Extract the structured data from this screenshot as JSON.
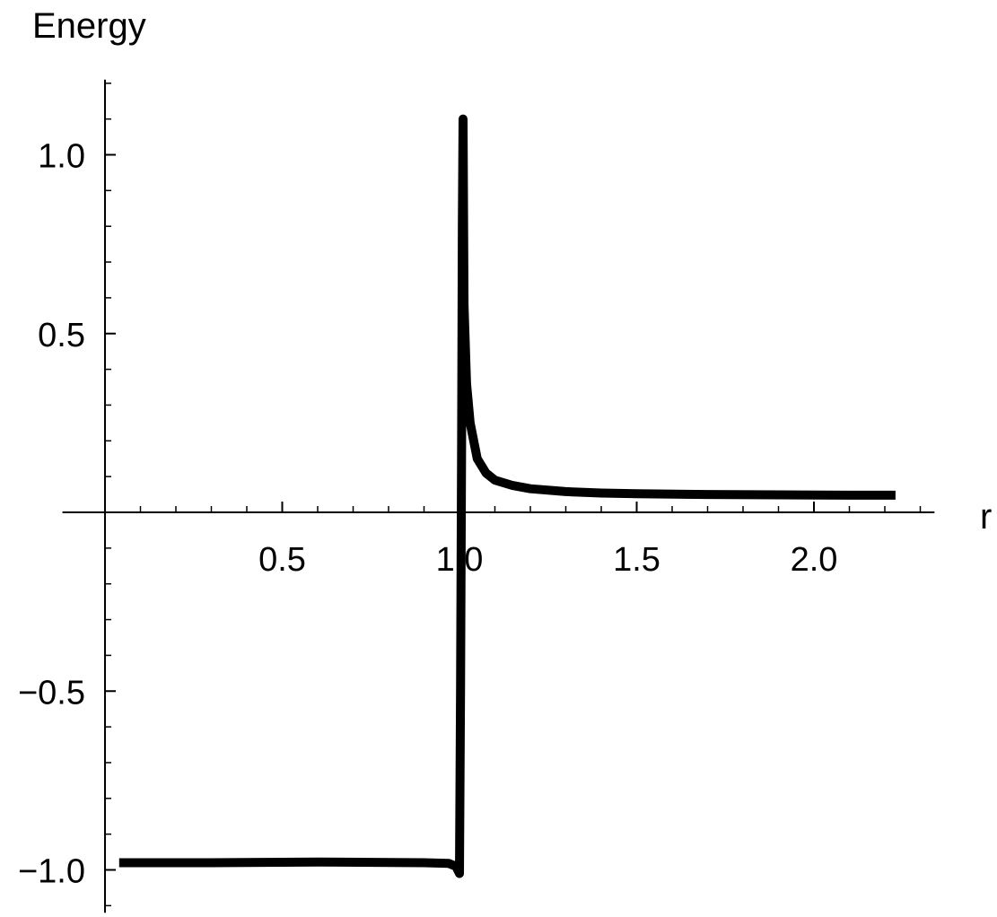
{
  "chart_data": {
    "type": "line",
    "title": "",
    "xlabel": "r",
    "ylabel": "Energy",
    "xlim": [
      -0.12,
      2.34
    ],
    "ylim": [
      -1.12,
      1.21
    ],
    "grid": false,
    "legend": "none",
    "x_ticks": [
      {
        "value": 0.5,
        "label": "0.5"
      },
      {
        "value": 1.0,
        "label": "1.0"
      },
      {
        "value": 1.5,
        "label": "1.5"
      },
      {
        "value": 2.0,
        "label": "2.0"
      }
    ],
    "y_ticks": [
      {
        "value": 1.0,
        "label": "1.0"
      },
      {
        "value": 0.5,
        "label": "0.5"
      },
      {
        "value": -0.5,
        "label": "−0.5"
      },
      {
        "value": -1.0,
        "label": "−1.0"
      }
    ],
    "x_minor_step": 0.1,
    "y_minor_step": 0.1,
    "line_color": "#000000",
    "series": [
      {
        "name": "Energy",
        "x": [
          0.04,
          0.3,
          0.6,
          0.9,
          0.97,
          0.99,
          0.995,
          1.0,
          1.003,
          1.006,
          1.008,
          1.01,
          1.013,
          1.02,
          1.03,
          1.05,
          1.075,
          1.1,
          1.15,
          1.2,
          1.3,
          1.4,
          1.5,
          1.7,
          1.9,
          2.1,
          2.23
        ],
        "y": [
          -0.98,
          -0.98,
          -0.978,
          -0.98,
          -0.982,
          -0.99,
          -1.0,
          -1.01,
          -0.5,
          0.2,
          0.8,
          1.1,
          0.58,
          0.36,
          0.25,
          0.15,
          0.11,
          0.09,
          0.075,
          0.066,
          0.058,
          0.054,
          0.052,
          0.05,
          0.049,
          0.048,
          0.048
        ]
      }
    ]
  }
}
